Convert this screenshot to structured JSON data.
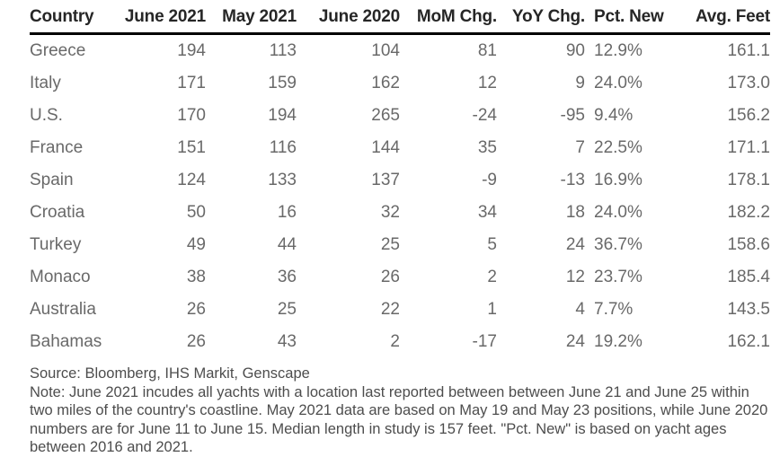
{
  "chart_data": {
    "type": "table",
    "columns": [
      "Country",
      "June 2021",
      "May 2021",
      "June 2020",
      "MoM Chg.",
      "YoY Chg.",
      "Pct. New",
      "Avg. Feet"
    ],
    "rows": [
      [
        "Greece",
        "194",
        "113",
        "104",
        "81",
        "90",
        "12.9%",
        "161.1"
      ],
      [
        "Italy",
        "171",
        "159",
        "162",
        "12",
        "9",
        "24.0%",
        "173.0"
      ],
      [
        "U.S.",
        "170",
        "194",
        "265",
        "-24",
        "-95",
        "9.4%",
        "156.2"
      ],
      [
        "France",
        "151",
        "116",
        "144",
        "35",
        "7",
        "22.5%",
        "171.1"
      ],
      [
        "Spain",
        "124",
        "133",
        "137",
        "-9",
        "-13",
        "16.9%",
        "178.1"
      ],
      [
        "Croatia",
        "50",
        "16",
        "32",
        "34",
        "18",
        "24.0%",
        "182.2"
      ],
      [
        "Turkey",
        "49",
        "44",
        "25",
        "5",
        "24",
        "36.7%",
        "158.6"
      ],
      [
        "Monaco",
        "38",
        "36",
        "26",
        "2",
        "12",
        "23.7%",
        "185.4"
      ],
      [
        "Australia",
        "26",
        "25",
        "22",
        "1",
        "4",
        "7.7%",
        "143.5"
      ],
      [
        "Bahamas",
        "26",
        "43",
        "2",
        "-17",
        "24",
        "19.2%",
        "162.1"
      ]
    ],
    "source": "Source: Bloomberg, IHS Markit, Genscape",
    "note": "Note: June 2021 incudes all yachts with a location last reported between between June 21 and June 25 within two miles of the country's coastline. May 2021 data are based on May 19 and May 23 positions, while June 2020 numbers are for June 11 to June 15. Median length in study is 157 feet. \"Pct. New\" is based on yacht ages between 2016 and 2021.",
    "layout_hints": {
      "header_rule_color": "#000000",
      "header_text_color": "#262626",
      "body_text_color": "#696969",
      "footer_text_color": "#4d4d4d",
      "background": "#ffffff"
    }
  }
}
